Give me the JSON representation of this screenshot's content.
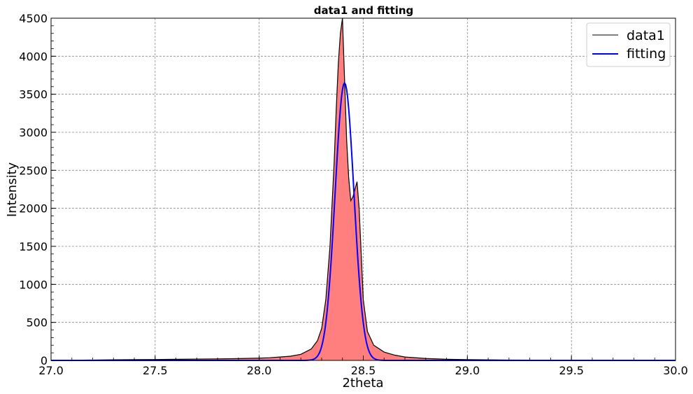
{
  "chart_data": {
    "type": "line",
    "title": "data1 and fitting",
    "xlabel": "2theta",
    "ylabel": "Intensity",
    "xlim": [
      27.0,
      30.0
    ],
    "ylim": [
      0,
      4500
    ],
    "xticks": [
      27.0,
      27.5,
      28.0,
      28.5,
      29.0,
      29.5,
      30.0
    ],
    "xtick_labels": [
      "27.0",
      "27.5",
      "28.0",
      "28.5",
      "29.0",
      "29.5",
      "30.0"
    ],
    "yticks": [
      0,
      500,
      1000,
      1500,
      2000,
      2500,
      3000,
      3500,
      4000,
      4500
    ],
    "ytick_labels": [
      "0",
      "500",
      "1000",
      "1500",
      "2000",
      "2500",
      "3000",
      "3500",
      "4000",
      "4500"
    ],
    "grid": true,
    "legend_position": "top-right",
    "series": [
      {
        "name": "data1",
        "color": "#000000",
        "fill_color": "#ff7f7f",
        "x": [
          27.0,
          27.1,
          27.2,
          27.3,
          27.4,
          27.5,
          27.6,
          27.7,
          27.8,
          27.9,
          28.0,
          28.05,
          28.1,
          28.15,
          28.2,
          28.25,
          28.28,
          28.3,
          28.32,
          28.34,
          28.36,
          28.37,
          28.38,
          28.39,
          28.4,
          28.41,
          28.42,
          28.43,
          28.44,
          28.45,
          28.46,
          28.47,
          28.48,
          28.49,
          28.5,
          28.52,
          28.55,
          28.6,
          28.65,
          28.7,
          28.8,
          28.9,
          29.0,
          29.2,
          29.5,
          30.0
        ],
        "y": [
          0,
          3,
          5,
          8,
          10,
          12,
          15,
          18,
          20,
          24,
          30,
          35,
          45,
          55,
          80,
          150,
          260,
          420,
          800,
          1500,
          2600,
          3300,
          3900,
          4300,
          4500,
          3700,
          2900,
          2400,
          2100,
          2150,
          2250,
          2350,
          2000,
          1400,
          800,
          380,
          200,
          110,
          70,
          45,
          25,
          15,
          10,
          5,
          2,
          0
        ]
      },
      {
        "name": "fitting",
        "color": "#0000ff",
        "peak_center": 28.41,
        "peak_height": 3650,
        "peak_sigma": 0.045
      }
    ]
  }
}
